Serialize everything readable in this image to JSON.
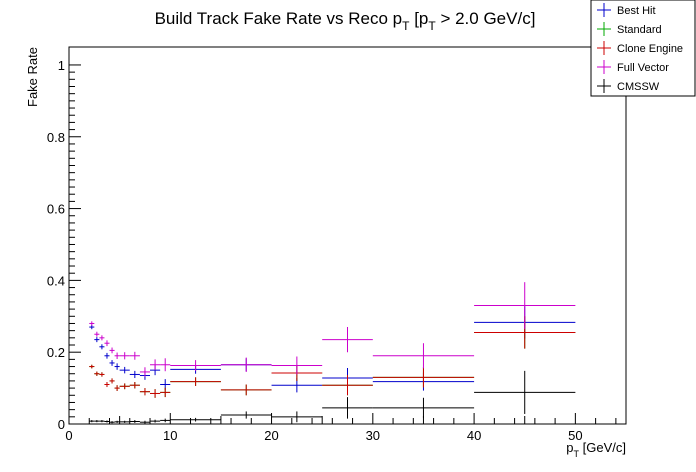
{
  "chart_data": {
    "type": "scatter",
    "title_main": "Build Track Fake Rate vs Reco p",
    "title_sub": "T",
    "title_rest": " [p",
    "title_sub2": "T",
    "title_tail": " > 2.0 GeV/c]",
    "ylabel": "Fake Rate",
    "xlabel_main": "p",
    "xlabel_sub": "T",
    "xlabel_unit": " [GeV/c]",
    "xlim": [
      0,
      55
    ],
    "ylim": [
      0,
      1.05
    ],
    "x_ticks": [
      0,
      10,
      20,
      30,
      40,
      50
    ],
    "y_ticks": [
      0,
      0.2,
      0.4,
      0.6,
      0.8,
      1
    ],
    "x_tick_labels": [
      "0",
      "10",
      "20",
      "30",
      "40",
      "50"
    ],
    "y_tick_labels": [
      "0",
      "0.2",
      "0.4",
      "0.6",
      "0.8",
      "1"
    ],
    "legend_position": "top-right",
    "series": [
      {
        "name": "Best Hit",
        "color": "#0000cc",
        "points": [
          {
            "x": 2.25,
            "xerr": 0.25,
            "y": 0.27,
            "yerr": 0.006
          },
          {
            "x": 2.75,
            "xerr": 0.25,
            "y": 0.235,
            "yerr": 0.007
          },
          {
            "x": 3.25,
            "xerr": 0.25,
            "y": 0.215,
            "yerr": 0.007
          },
          {
            "x": 3.75,
            "xerr": 0.25,
            "y": 0.19,
            "yerr": 0.008
          },
          {
            "x": 4.25,
            "xerr": 0.25,
            "y": 0.17,
            "yerr": 0.008
          },
          {
            "x": 4.75,
            "xerr": 0.25,
            "y": 0.16,
            "yerr": 0.009
          },
          {
            "x": 5.5,
            "xerr": 0.5,
            "y": 0.15,
            "yerr": 0.009
          },
          {
            "x": 6.5,
            "xerr": 0.5,
            "y": 0.138,
            "yerr": 0.01
          },
          {
            "x": 7.5,
            "xerr": 0.5,
            "y": 0.135,
            "yerr": 0.012
          },
          {
            "x": 8.5,
            "xerr": 0.5,
            "y": 0.15,
            "yerr": 0.014
          },
          {
            "x": 9.5,
            "xerr": 0.5,
            "y": 0.11,
            "yerr": 0.015
          },
          {
            "x": 12.5,
            "xerr": 2.5,
            "y": 0.152,
            "yerr": 0.012
          },
          {
            "x": 17.5,
            "xerr": 2.5,
            "y": 0.165,
            "yerr": 0.018
          },
          {
            "x": 22.5,
            "xerr": 2.5,
            "y": 0.108,
            "yerr": 0.02
          },
          {
            "x": 27.5,
            "xerr": 2.5,
            "y": 0.128,
            "yerr": 0.028
          },
          {
            "x": 35,
            "xerr": 5,
            "y": 0.118,
            "yerr": 0.025
          },
          {
            "x": 45,
            "xerr": 5,
            "y": 0.283,
            "yerr": 0.045
          }
        ]
      },
      {
        "name": "Standard",
        "color": "#00aa00",
        "points": [
          {
            "x": 2.25,
            "xerr": 0.25,
            "y": 0.16,
            "yerr": 0.005
          },
          {
            "x": 2.75,
            "xerr": 0.25,
            "y": 0.14,
            "yerr": 0.006
          },
          {
            "x": 3.25,
            "xerr": 0.25,
            "y": 0.138,
            "yerr": 0.006
          },
          {
            "x": 3.75,
            "xerr": 0.25,
            "y": 0.11,
            "yerr": 0.007
          },
          {
            "x": 4.25,
            "xerr": 0.25,
            "y": 0.12,
            "yerr": 0.007
          },
          {
            "x": 4.75,
            "xerr": 0.25,
            "y": 0.1,
            "yerr": 0.008
          },
          {
            "x": 5.5,
            "xerr": 0.5,
            "y": 0.105,
            "yerr": 0.008
          },
          {
            "x": 6.5,
            "xerr": 0.5,
            "y": 0.108,
            "yerr": 0.009
          },
          {
            "x": 7.5,
            "xerr": 0.5,
            "y": 0.09,
            "yerr": 0.01
          },
          {
            "x": 8.5,
            "xerr": 0.5,
            "y": 0.085,
            "yerr": 0.012
          },
          {
            "x": 9.5,
            "xerr": 0.5,
            "y": 0.088,
            "yerr": 0.013
          },
          {
            "x": 12.5,
            "xerr": 2.5,
            "y": 0.118,
            "yerr": 0.012
          },
          {
            "x": 17.5,
            "xerr": 2.5,
            "y": 0.095,
            "yerr": 0.015
          },
          {
            "x": 22.5,
            "xerr": 2.5,
            "y": 0.142,
            "yerr": 0.022
          },
          {
            "x": 27.5,
            "xerr": 2.5,
            "y": 0.108,
            "yerr": 0.028
          },
          {
            "x": 35,
            "xerr": 5,
            "y": 0.13,
            "yerr": 0.028
          },
          {
            "x": 45,
            "xerr": 5,
            "y": 0.255,
            "yerr": 0.045
          }
        ]
      },
      {
        "name": "Clone Engine",
        "color": "#cc0000",
        "points": [
          {
            "x": 2.25,
            "xerr": 0.25,
            "y": 0.16,
            "yerr": 0.005
          },
          {
            "x": 2.75,
            "xerr": 0.25,
            "y": 0.14,
            "yerr": 0.006
          },
          {
            "x": 3.25,
            "xerr": 0.25,
            "y": 0.138,
            "yerr": 0.006
          },
          {
            "x": 3.75,
            "xerr": 0.25,
            "y": 0.11,
            "yerr": 0.007
          },
          {
            "x": 4.25,
            "xerr": 0.25,
            "y": 0.12,
            "yerr": 0.007
          },
          {
            "x": 4.75,
            "xerr": 0.25,
            "y": 0.1,
            "yerr": 0.008
          },
          {
            "x": 5.5,
            "xerr": 0.5,
            "y": 0.105,
            "yerr": 0.008
          },
          {
            "x": 6.5,
            "xerr": 0.5,
            "y": 0.108,
            "yerr": 0.009
          },
          {
            "x": 7.5,
            "xerr": 0.5,
            "y": 0.09,
            "yerr": 0.01
          },
          {
            "x": 8.5,
            "xerr": 0.5,
            "y": 0.085,
            "yerr": 0.012
          },
          {
            "x": 9.5,
            "xerr": 0.5,
            "y": 0.088,
            "yerr": 0.013
          },
          {
            "x": 12.5,
            "xerr": 2.5,
            "y": 0.118,
            "yerr": 0.012
          },
          {
            "x": 17.5,
            "xerr": 2.5,
            "y": 0.095,
            "yerr": 0.015
          },
          {
            "x": 22.5,
            "xerr": 2.5,
            "y": 0.142,
            "yerr": 0.022
          },
          {
            "x": 27.5,
            "xerr": 2.5,
            "y": 0.108,
            "yerr": 0.028
          },
          {
            "x": 35,
            "xerr": 5,
            "y": 0.13,
            "yerr": 0.028
          },
          {
            "x": 45,
            "xerr": 5,
            "y": 0.255,
            "yerr": 0.045
          }
        ]
      },
      {
        "name": "Full Vector",
        "color": "#cc00cc",
        "points": [
          {
            "x": 2.25,
            "xerr": 0.25,
            "y": 0.28,
            "yerr": 0.006
          },
          {
            "x": 2.75,
            "xerr": 0.25,
            "y": 0.25,
            "yerr": 0.007
          },
          {
            "x": 3.25,
            "xerr": 0.25,
            "y": 0.24,
            "yerr": 0.007
          },
          {
            "x": 3.75,
            "xerr": 0.25,
            "y": 0.225,
            "yerr": 0.008
          },
          {
            "x": 4.25,
            "xerr": 0.25,
            "y": 0.205,
            "yerr": 0.008
          },
          {
            "x": 4.75,
            "xerr": 0.25,
            "y": 0.19,
            "yerr": 0.009
          },
          {
            "x": 5.5,
            "xerr": 0.5,
            "y": 0.19,
            "yerr": 0.01
          },
          {
            "x": 6.5,
            "xerr": 0.5,
            "y": 0.19,
            "yerr": 0.011
          },
          {
            "x": 7.5,
            "xerr": 0.5,
            "y": 0.145,
            "yerr": 0.013
          },
          {
            "x": 8.5,
            "xerr": 0.5,
            "y": 0.165,
            "yerr": 0.015
          },
          {
            "x": 9.5,
            "xerr": 0.5,
            "y": 0.165,
            "yerr": 0.018
          },
          {
            "x": 12.5,
            "xerr": 2.5,
            "y": 0.163,
            "yerr": 0.015
          },
          {
            "x": 17.5,
            "xerr": 2.5,
            "y": 0.165,
            "yerr": 0.02
          },
          {
            "x": 22.5,
            "xerr": 2.5,
            "y": 0.163,
            "yerr": 0.025
          },
          {
            "x": 27.5,
            "xerr": 2.5,
            "y": 0.235,
            "yerr": 0.035
          },
          {
            "x": 35,
            "xerr": 5,
            "y": 0.19,
            "yerr": 0.035
          },
          {
            "x": 45,
            "xerr": 5,
            "y": 0.33,
            "yerr": 0.065
          }
        ]
      },
      {
        "name": "CMSSW",
        "color": "#000000",
        "points": [
          {
            "x": 2.25,
            "xerr": 0.25,
            "y": 0.008,
            "yerr": 0.003
          },
          {
            "x": 2.75,
            "xerr": 0.25,
            "y": 0.008,
            "yerr": 0.003
          },
          {
            "x": 3.25,
            "xerr": 0.25,
            "y": 0.008,
            "yerr": 0.003
          },
          {
            "x": 3.75,
            "xerr": 0.25,
            "y": 0.007,
            "yerr": 0.003
          },
          {
            "x": 4.25,
            "xerr": 0.25,
            "y": 0.005,
            "yerr": 0.003
          },
          {
            "x": 4.75,
            "xerr": 0.25,
            "y": 0.006,
            "yerr": 0.003
          },
          {
            "x": 5.5,
            "xerr": 0.5,
            "y": 0.006,
            "yerr": 0.003
          },
          {
            "x": 6.5,
            "xerr": 0.5,
            "y": 0.007,
            "yerr": 0.004
          },
          {
            "x": 7.5,
            "xerr": 0.5,
            "y": 0.005,
            "yerr": 0.004
          },
          {
            "x": 8.5,
            "xerr": 0.5,
            "y": 0.008,
            "yerr": 0.004
          },
          {
            "x": 9.5,
            "xerr": 0.5,
            "y": 0.01,
            "yerr": 0.005
          },
          {
            "x": 12.5,
            "xerr": 2.5,
            "y": 0.012,
            "yerr": 0.005
          },
          {
            "x": 17.5,
            "xerr": 2.5,
            "y": 0.025,
            "yerr": 0.01
          },
          {
            "x": 22.5,
            "xerr": 2.5,
            "y": 0.02,
            "yerr": 0.015
          },
          {
            "x": 27.5,
            "xerr": 2.5,
            "y": 0.045,
            "yerr": 0.03
          },
          {
            "x": 35,
            "xerr": 5,
            "y": 0.045,
            "yerr": 0.028
          },
          {
            "x": 45,
            "xerr": 5,
            "y": 0.088,
            "yerr": 0.06
          }
        ]
      }
    ]
  }
}
